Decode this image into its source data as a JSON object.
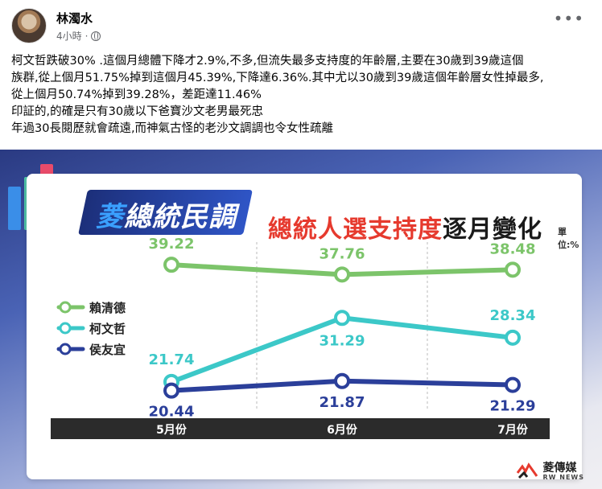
{
  "post": {
    "author": "林濁水",
    "time": "4小時",
    "more_label": "•••",
    "lines": [
      "柯文哲跌破30% .這個月總體下降才2.9%,不多,但流失最多支持度的年齡層,主要在30歲到39歲這個",
      "族群,從上個月51.75%掉到這個月45.39%,下降達6.36%.其中尤以30歲到39歲這個年齡層女性掉最多,",
      "從上個月50.74%掉到39.28%，差距達11.46%",
      "印証的,的確是只有30歲以下爸寶沙文老男最死忠",
      "年過30長閱歷就會疏遠,而神氣古怪的老沙文調調也令女性疏離"
    ]
  },
  "graphic": {
    "brand_a": "菱",
    "brand_b": "總統民調",
    "title_red": "總統人選支持度",
    "title_dark": "逐月變化",
    "unit": "單位:%",
    "watermark": "菱傳媒",
    "watermark_sub": "RW NEWS"
  },
  "chart_data": {
    "type": "line",
    "categories": [
      "5月份",
      "6月份",
      "7月份"
    ],
    "series": [
      {
        "name": "賴清德",
        "values": [
          39.22,
          37.76,
          38.48
        ],
        "color": "#7cc46a"
      },
      {
        "name": "柯文哲",
        "values": [
          21.74,
          31.29,
          28.34
        ],
        "color": "#3cc8c8"
      },
      {
        "name": "侯友宜",
        "values": [
          20.44,
          21.87,
          21.29
        ],
        "color": "#2b3f9a"
      }
    ],
    "legend_position": "left",
    "ylim": [
      18,
      42
    ],
    "grid": "vertical-dashed"
  }
}
